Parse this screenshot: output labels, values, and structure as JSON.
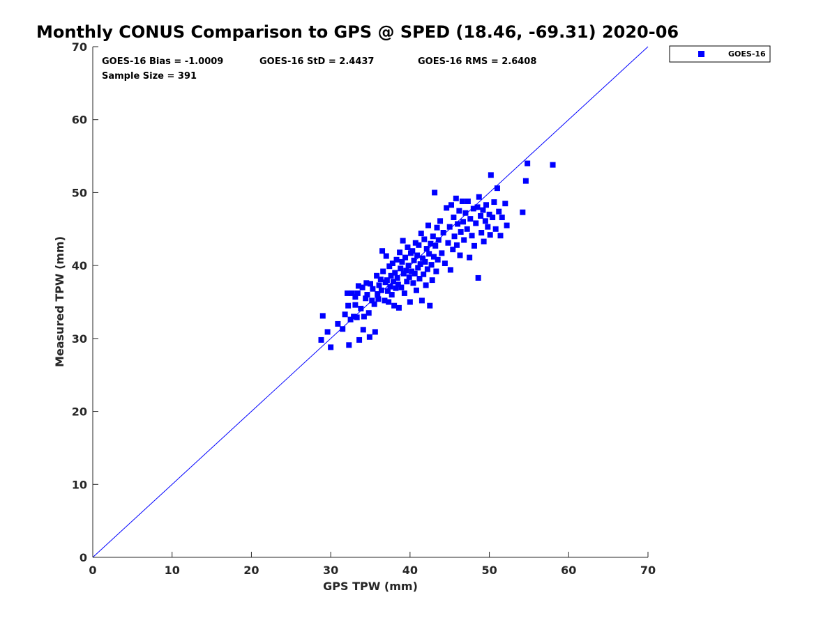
{
  "chart_data": {
    "type": "scatter",
    "title": "Monthly CONUS Comparison to GPS @ SPED (18.46, -69.31) 2020-06",
    "xlabel": "GPS TPW (mm)",
    "ylabel": "Measured TPW (mm)",
    "xlim": [
      0,
      70
    ],
    "ylim": [
      0,
      70
    ],
    "xticks": [
      "0",
      "10",
      "20",
      "30",
      "40",
      "50",
      "60",
      "70"
    ],
    "yticks": [
      "0",
      "10",
      "20",
      "30",
      "40",
      "50",
      "60",
      "70"
    ],
    "grid": false,
    "legend_position": "outside-top-right",
    "annotations": {
      "bias": "GOES-16 Bias = -1.0009",
      "std": "GOES-16 StD = 2.4437",
      "rms": "GOES-16 RMS = 2.6408",
      "sample": "Sample Size = 391"
    },
    "reference_line": {
      "x": [
        0,
        70
      ],
      "y": [
        0,
        70
      ],
      "color": "#0000ff"
    },
    "series": [
      {
        "name": "GOES-16",
        "color": "#0000ff",
        "marker": "square",
        "points": [
          [
            28.8,
            29.8
          ],
          [
            29.0,
            33.1
          ],
          [
            29.6,
            30.9
          ],
          [
            30.0,
            28.8
          ],
          [
            30.9,
            32.0
          ],
          [
            31.5,
            31.3
          ],
          [
            31.8,
            33.3
          ],
          [
            32.3,
            29.1
          ],
          [
            32.2,
            34.5
          ],
          [
            32.5,
            32.6
          ],
          [
            32.9,
            33.0
          ],
          [
            33.1,
            34.6
          ],
          [
            33.3,
            32.9
          ],
          [
            33.4,
            36.2
          ],
          [
            33.6,
            29.8
          ],
          [
            33.8,
            34.1
          ],
          [
            34.0,
            37.0
          ],
          [
            34.1,
            31.2
          ],
          [
            34.2,
            33.0
          ],
          [
            34.4,
            35.5
          ],
          [
            34.5,
            37.6
          ],
          [
            34.6,
            36.0
          ],
          [
            34.8,
            33.5
          ],
          [
            34.9,
            30.2
          ],
          [
            35.0,
            37.5
          ],
          [
            35.2,
            35.2
          ],
          [
            35.3,
            36.8
          ],
          [
            35.5,
            34.7
          ],
          [
            35.6,
            30.9
          ],
          [
            35.8,
            38.6
          ],
          [
            32.1,
            36.2
          ],
          [
            32.7,
            36.2
          ],
          [
            33.1,
            35.7
          ],
          [
            33.5,
            37.2
          ],
          [
            35.9,
            36.1
          ],
          [
            36.0,
            35.4
          ],
          [
            36.1,
            37.3
          ],
          [
            36.3,
            38.1
          ],
          [
            36.4,
            36.6
          ],
          [
            36.5,
            42.0
          ],
          [
            36.6,
            39.2
          ],
          [
            36.8,
            35.2
          ],
          [
            36.9,
            37.7
          ],
          [
            37.0,
            41.3
          ],
          [
            37.1,
            38.0
          ],
          [
            37.2,
            36.5
          ],
          [
            37.3,
            35.0
          ],
          [
            37.4,
            39.9
          ],
          [
            37.5,
            37.1
          ],
          [
            37.6,
            38.6
          ],
          [
            37.7,
            36.0
          ],
          [
            37.8,
            40.3
          ],
          [
            37.9,
            37.8
          ],
          [
            38.0,
            34.5
          ],
          [
            38.1,
            39.0
          ],
          [
            38.2,
            36.9
          ],
          [
            38.3,
            40.8
          ],
          [
            38.4,
            38.3
          ],
          [
            38.5,
            37.4
          ],
          [
            38.6,
            34.2
          ],
          [
            38.7,
            41.8
          ],
          [
            38.8,
            39.6
          ],
          [
            38.9,
            37.0
          ],
          [
            39.0,
            40.5
          ],
          [
            39.1,
            43.4
          ],
          [
            39.2,
            38.9
          ],
          [
            39.3,
            36.2
          ],
          [
            39.4,
            41.1
          ],
          [
            39.5,
            39.3
          ],
          [
            39.6,
            37.8
          ],
          [
            39.7,
            42.5
          ],
          [
            39.8,
            40.0
          ],
          [
            39.9,
            38.4
          ],
          [
            40.0,
            35.0
          ],
          [
            40.1,
            41.7
          ],
          [
            40.2,
            39.2
          ],
          [
            40.3,
            42.0
          ],
          [
            40.4,
            37.6
          ],
          [
            40.5,
            40.7
          ],
          [
            40.6,
            38.9
          ],
          [
            40.7,
            43.1
          ],
          [
            40.8,
            36.6
          ],
          [
            40.9,
            41.4
          ],
          [
            41.0,
            39.7
          ],
          [
            41.1,
            42.8
          ],
          [
            41.2,
            38.2
          ],
          [
            41.3,
            40.2
          ],
          [
            41.4,
            44.4
          ],
          [
            41.5,
            35.2
          ],
          [
            41.6,
            41.0
          ],
          [
            41.7,
            38.8
          ],
          [
            41.8,
            43.6
          ],
          [
            41.9,
            40.5
          ],
          [
            42.0,
            37.3
          ],
          [
            42.1,
            42.3
          ],
          [
            42.2,
            39.5
          ],
          [
            42.3,
            45.5
          ],
          [
            42.4,
            41.6
          ],
          [
            42.5,
            34.5
          ],
          [
            42.6,
            43.0
          ],
          [
            42.7,
            40.1
          ],
          [
            42.8,
            38.0
          ],
          [
            42.9,
            44.0
          ],
          [
            43.0,
            41.2
          ],
          [
            43.1,
            50.0
          ],
          [
            43.2,
            42.7
          ],
          [
            43.3,
            39.2
          ],
          [
            43.4,
            45.2
          ],
          [
            43.5,
            40.8
          ],
          [
            43.6,
            43.5
          ],
          [
            43.8,
            46.1
          ],
          [
            44.0,
            41.7
          ],
          [
            44.2,
            44.5
          ],
          [
            44.4,
            40.3
          ],
          [
            44.6,
            47.9
          ],
          [
            44.8,
            43.1
          ],
          [
            45.0,
            45.3
          ],
          [
            45.1,
            39.4
          ],
          [
            45.2,
            48.3
          ],
          [
            45.4,
            42.2
          ],
          [
            45.5,
            46.6
          ],
          [
            45.6,
            44.0
          ],
          [
            45.8,
            49.2
          ],
          [
            45.9,
            42.8
          ],
          [
            46.0,
            45.7
          ],
          [
            46.2,
            47.5
          ],
          [
            46.3,
            41.4
          ],
          [
            46.4,
            44.6
          ],
          [
            46.6,
            48.8
          ],
          [
            46.7,
            46.0
          ],
          [
            46.8,
            43.5
          ],
          [
            47.0,
            47.2
          ],
          [
            47.2,
            45.0
          ],
          [
            47.3,
            48.8
          ],
          [
            47.5,
            41.1
          ],
          [
            47.6,
            46.4
          ],
          [
            47.8,
            44.1
          ],
          [
            48.0,
            47.8
          ],
          [
            48.1,
            42.7
          ],
          [
            48.3,
            45.8
          ],
          [
            48.5,
            48.0
          ],
          [
            48.6,
            38.3
          ],
          [
            48.7,
            49.4
          ],
          [
            48.9,
            46.8
          ],
          [
            49.0,
            44.5
          ],
          [
            49.2,
            47.6
          ],
          [
            49.3,
            43.3
          ],
          [
            49.5,
            46.1
          ],
          [
            49.6,
            48.3
          ],
          [
            49.8,
            45.3
          ],
          [
            50.0,
            47.0
          ],
          [
            50.1,
            44.2
          ],
          [
            50.2,
            52.4
          ],
          [
            50.4,
            46.6
          ],
          [
            50.6,
            48.7
          ],
          [
            50.8,
            45.0
          ],
          [
            51.0,
            50.6
          ],
          [
            51.2,
            47.4
          ],
          [
            51.4,
            44.1
          ],
          [
            51.6,
            46.6
          ],
          [
            52.0,
            48.5
          ],
          [
            52.2,
            45.5
          ],
          [
            54.2,
            47.3
          ],
          [
            54.6,
            51.6
          ],
          [
            54.8,
            54.0
          ],
          [
            58.0,
            53.8
          ]
        ]
      }
    ]
  }
}
